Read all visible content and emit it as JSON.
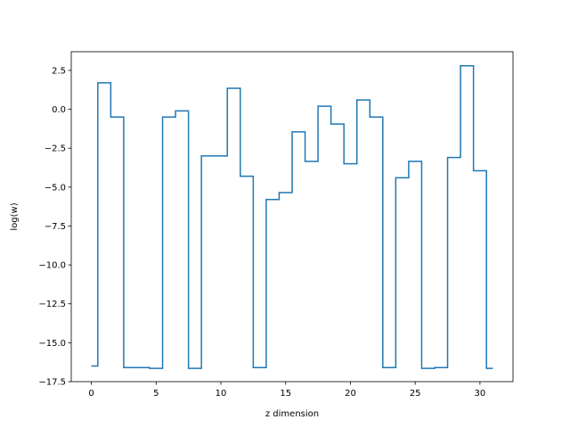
{
  "chart_data": {
    "type": "line",
    "drawstyle": "steps-mid",
    "title": "",
    "xlabel": "z dimension",
    "ylabel": "log(w)",
    "xlim": [
      -1.55,
      32.55
    ],
    "ylim": [
      -17.5,
      3.7
    ],
    "xticks": [
      0,
      5,
      10,
      15,
      20,
      25,
      30
    ],
    "yticks": [
      2.5,
      0.0,
      -2.5,
      -5.0,
      -7.5,
      -10.0,
      -12.5,
      -15.0,
      -17.5
    ],
    "ytick_labels": [
      "2.5",
      "0.0",
      "−2.5",
      "−5.0",
      "−7.5",
      "−10.0",
      "−12.5",
      "−15.0",
      "−17.5"
    ],
    "grid": false,
    "line_color": "#1f77b4",
    "series": [
      {
        "x": [
          0,
          1,
          2,
          3,
          4,
          5,
          6,
          7,
          8,
          9,
          10,
          11,
          12,
          13,
          14,
          15,
          16,
          17,
          18,
          19,
          20,
          21,
          22,
          23,
          24,
          25,
          26,
          27,
          28,
          29,
          30,
          31
        ],
        "values": [
          -16.5,
          1.7,
          -0.5,
          -16.6,
          -16.6,
          -16.65,
          -0.5,
          -0.1,
          -16.65,
          -3.0,
          -3.0,
          1.35,
          -4.3,
          -16.6,
          -5.8,
          -5.35,
          -1.45,
          -3.35,
          0.2,
          -0.95,
          -3.5,
          0.6,
          -0.5,
          -16.6,
          -4.4,
          -3.35,
          -16.65,
          -16.6,
          -3.1,
          2.8,
          -3.95,
          -16.65
        ]
      }
    ]
  }
}
